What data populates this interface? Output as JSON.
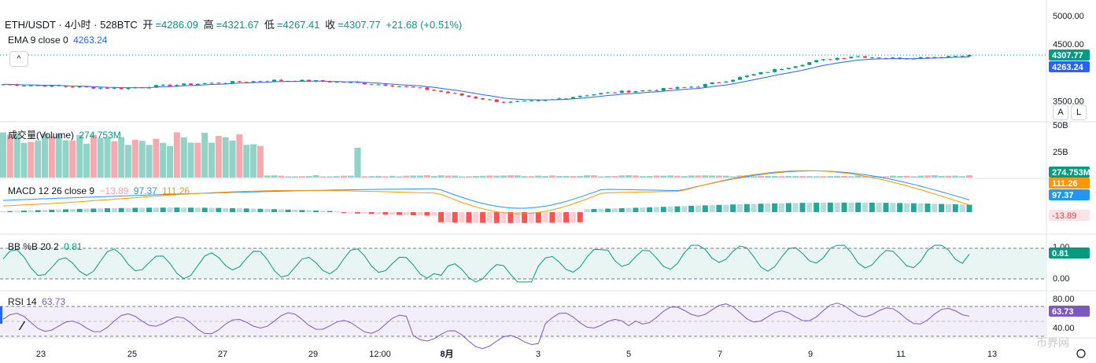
{
  "header": {
    "symbol": "ETH/USDT · 4小时 · 528BTC",
    "open_label": "开",
    "open": "=4286.09",
    "high_label": "高",
    "high": "=4321.67",
    "low_label": "低",
    "low": "=4267.41",
    "close_label": "收",
    "close": "=4307.77",
    "change": "+21.68 (+0.51%)",
    "ema_label": "EMA 9 close 0",
    "ema_value": "4263.24"
  },
  "buttons": {
    "collapse": "^",
    "auto": "A",
    "log": "L"
  },
  "panes": {
    "volume_label": "成交量(Volume)",
    "volume_value": "274.753M",
    "macd_label": "MACD 12 26 close 9",
    "macd_hist": "−13.89",
    "macd_line": "97.37",
    "macd_signal": "111.26",
    "bb_label": "BB %B 20 2",
    "bb_value": "0.81",
    "rsi_label": "RSI 14",
    "rsi_value": "63.73"
  },
  "price_axis": {
    "ticks": [
      "5000.00",
      "4500.00",
      "3500.00"
    ],
    "last_price": "4307.77",
    "ema_price": "4263.24",
    "vol_ticks": [
      "50B",
      "25B"
    ],
    "vol_last": "274.753M",
    "macd_tags": [
      "111.26",
      "97.37",
      "-13.89"
    ],
    "bb_ticks": [
      "1.00",
      "0.00"
    ],
    "bb_last": "0.81",
    "rsi_ticks": [
      "80.00",
      "40.00"
    ],
    "rsi_last": "63.73"
  },
  "time_axis": [
    "23",
    "25",
    "27",
    "29",
    "12:00",
    "8月",
    "3",
    "5",
    "7",
    "9",
    "11",
    "13"
  ],
  "watermark": "币界网",
  "colors": {
    "up": "#089981",
    "down": "#f23645",
    "ema": "#2962ff",
    "macd": "#2196f3",
    "signal": "#ff9800",
    "bb": "#089981",
    "rsi": "#7e57c2"
  },
  "chart_data": {
    "type": "candlestick",
    "x": [
      "23",
      "25",
      "27",
      "29",
      "12:00",
      "8月",
      "3",
      "5",
      "7",
      "9",
      "11",
      "13"
    ],
    "close_series": [
      3790,
      3770,
      3740,
      3720,
      3760,
      3800,
      3830,
      3860,
      3850,
      3820,
      3780,
      3700,
      3580,
      3470,
      3500,
      3600,
      3660,
      3700,
      3760,
      3900,
      4050,
      4200,
      4290,
      4250,
      4270,
      4307.77
    ],
    "ema_last": 4263.24,
    "volume_last": "274.753M",
    "macd": {
      "hist": -13.89,
      "macd": 97.37,
      "signal": 111.26
    },
    "bb_pct_b": 0.81,
    "rsi": 63.73,
    "ylim": [
      3200,
      5000
    ]
  }
}
